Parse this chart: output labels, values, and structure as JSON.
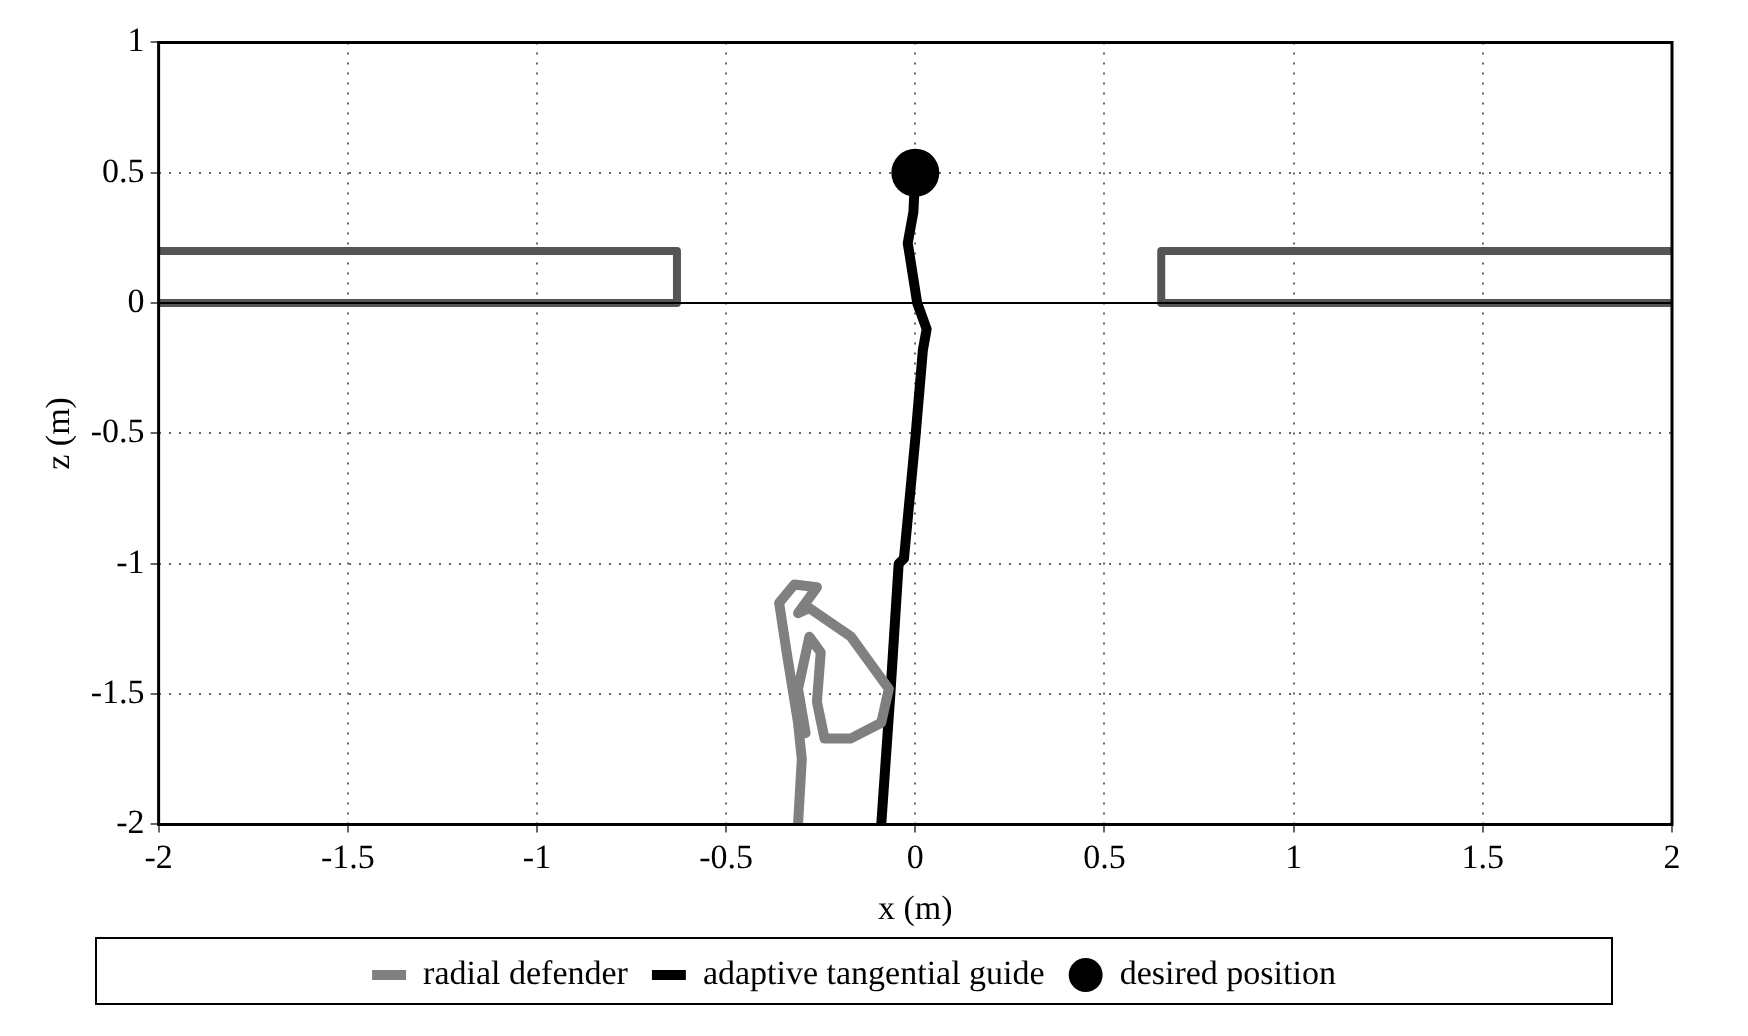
{
  "chart_data": {
    "type": "line",
    "xlabel": "x (m)",
    "ylabel": "z (m)",
    "xlim": [
      -2,
      2
    ],
    "ylim": [
      -2,
      1
    ],
    "xticks": [
      -2,
      -1.5,
      -1,
      -0.5,
      0,
      0.5,
      1,
      1.5,
      2
    ],
    "yticks": [
      -2,
      -1.5,
      -1,
      -0.5,
      0,
      0.5,
      1
    ],
    "grid": true,
    "legend": "bottom",
    "line_style": "solid",
    "ref_lines": [
      {
        "axis": "y",
        "value": 0,
        "color": "#000000"
      }
    ],
    "series": [
      {
        "color": "#555555",
        "x": [
          -2,
          -0.63,
          -0.63,
          -2
        ],
        "values": [
          0,
          0,
          0.2,
          0.2
        ]
      },
      {
        "color": "#555555",
        "x": [
          2,
          0.65,
          0.65,
          2
        ],
        "values": [
          0,
          0,
          0.2,
          0.2
        ]
      },
      {
        "name": "radial defender",
        "color": "#808080",
        "x": [
          -0.31,
          -0.3,
          -0.31,
          -0.34,
          -0.36,
          -0.32,
          -0.26,
          -0.31,
          -0.28,
          -0.17,
          -0.07,
          -0.09,
          -0.17,
          -0.24,
          -0.26,
          -0.25,
          -0.28,
          -0.31,
          -0.29
        ],
        "values": [
          -2,
          -1.75,
          -1.61,
          -1.34,
          -1.15,
          -1.08,
          -1.09,
          -1.19,
          -1.17,
          -1.28,
          -1.48,
          -1.61,
          -1.67,
          -1.67,
          -1.53,
          -1.34,
          -1.28,
          -1.48,
          -1.65
        ]
      },
      {
        "name": "adaptive tangential guide",
        "color": "#000000",
        "x": [
          -0.09,
          -0.066,
          -0.044,
          -0.03,
          0,
          0.02,
          0.03,
          0.005,
          -0.02,
          -0.005,
          0
        ],
        "values": [
          -2,
          -1.5,
          -1,
          -0.98,
          -0.52,
          -0.18,
          -0.1,
          0,
          0.23,
          0.35,
          0.5
        ]
      },
      {
        "name": "desired position",
        "type": "scatter",
        "marker": "circle",
        "color": "#000000",
        "x": [
          0
        ],
        "values": [
          0.5
        ]
      }
    ]
  }
}
